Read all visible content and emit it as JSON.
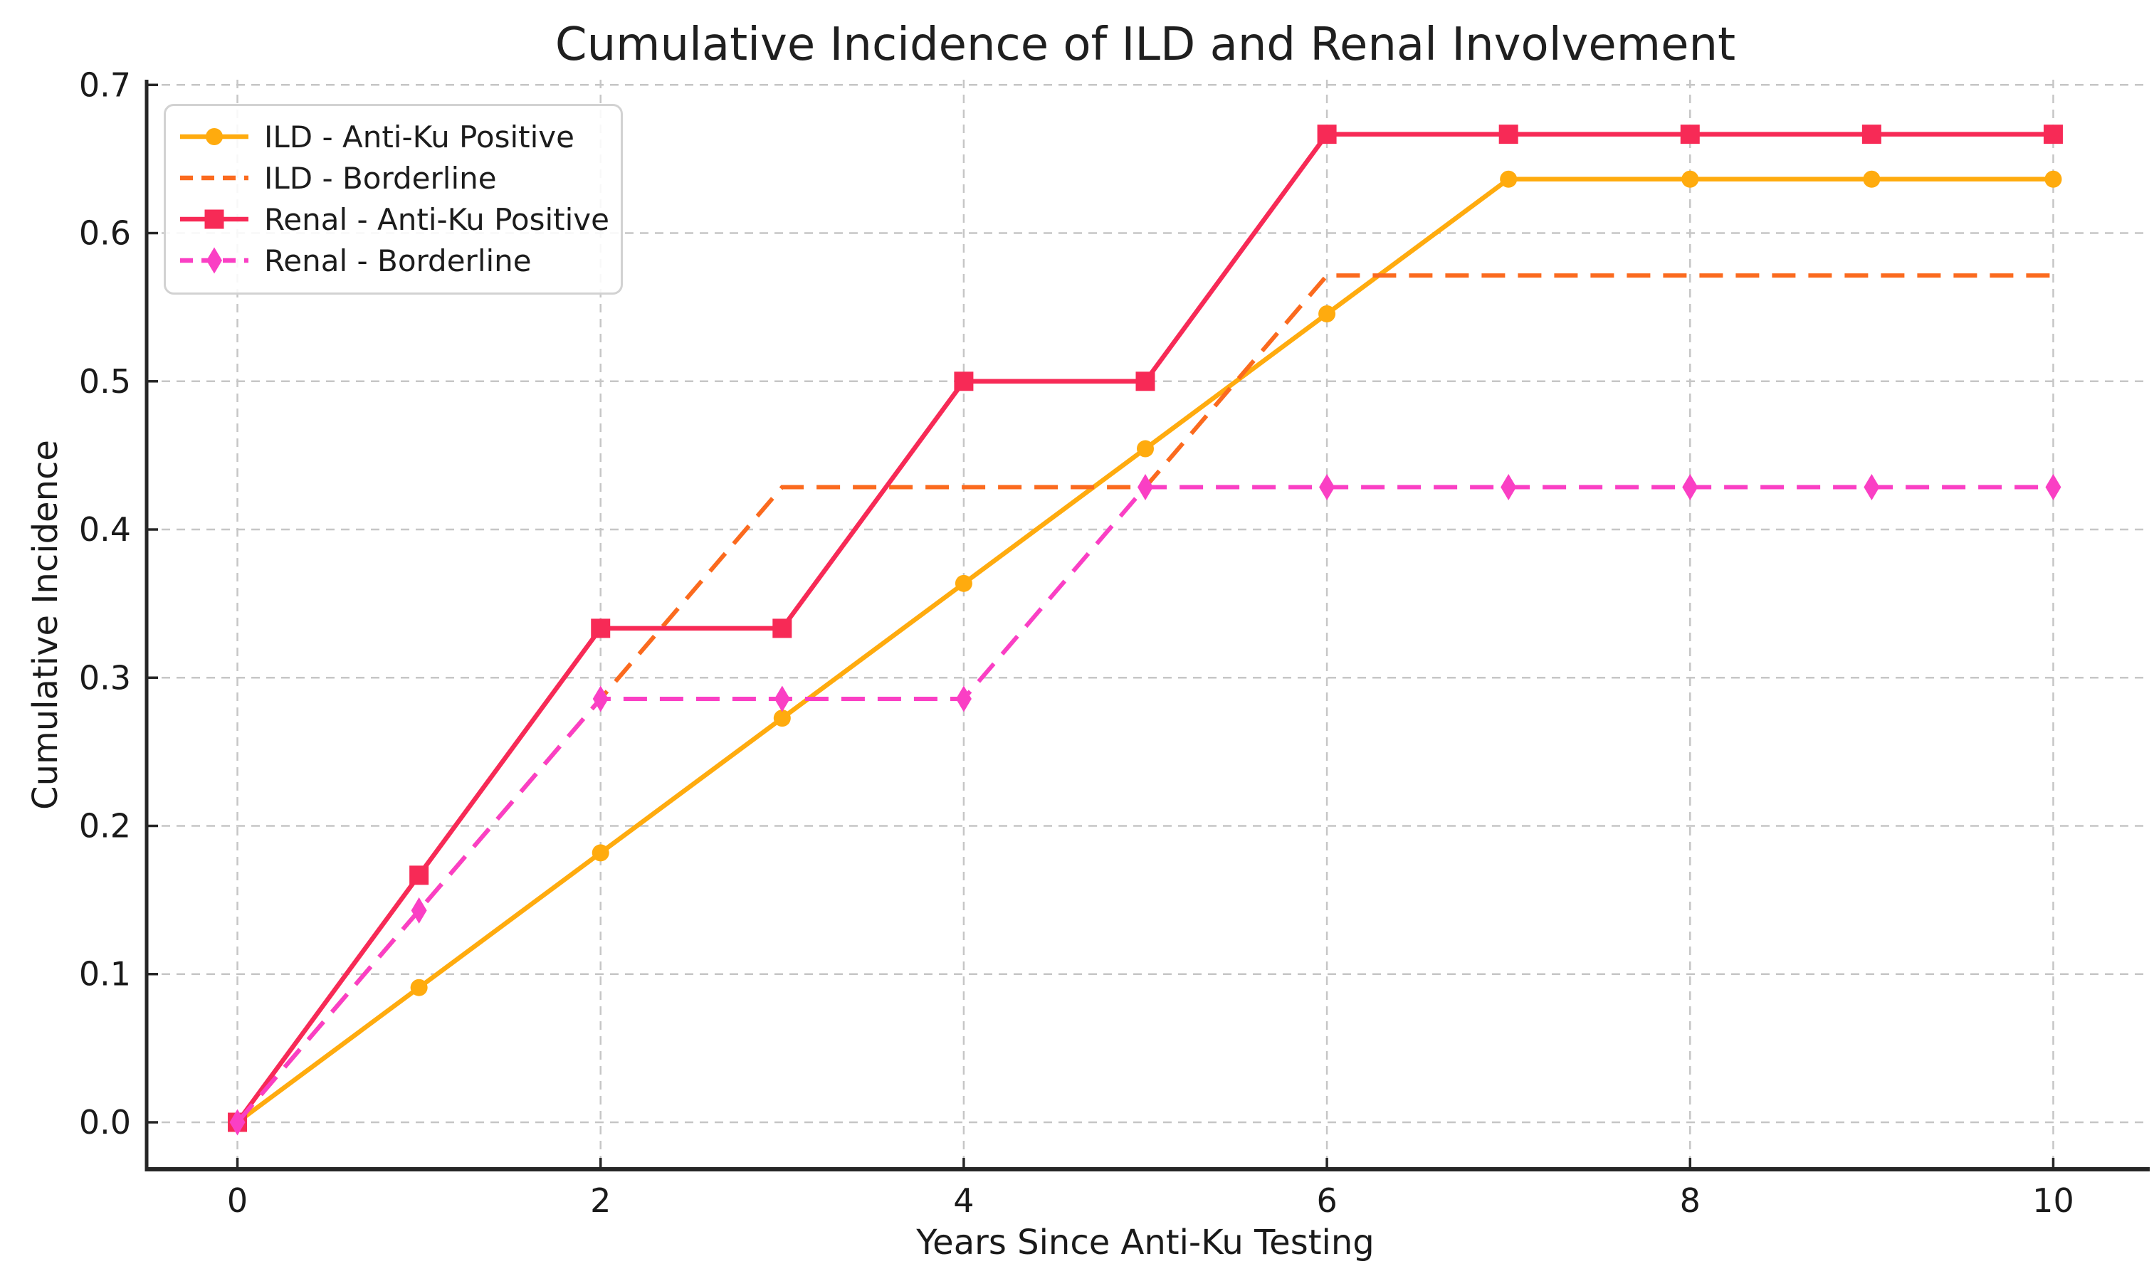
{
  "page": {
    "background": "#ffffff"
  },
  "chart_data": {
    "type": "line",
    "title": "Cumulative Incidence of ILD and Renal Involvement",
    "xlabel": "Years Since Anti-Ku Testing",
    "ylabel": "Cumulative Incidence",
    "x": [
      0,
      1,
      2,
      3,
      4,
      5,
      6,
      7,
      8,
      9,
      10
    ],
    "series": [
      {
        "name": "ILD - Anti-Ku Positive",
        "color": "#FFAB0E",
        "line_style": "solid",
        "marker": "circle",
        "values": [
          0.0,
          0.0909,
          0.1818,
          0.2727,
          0.3636,
          0.4545,
          0.5455,
          0.6364,
          0.6364,
          0.6364,
          0.6364
        ]
      },
      {
        "name": "ILD - Borderline",
        "color": "#FB6A1E",
        "line_style": "dashed",
        "marker": "none",
        "values": [
          0.0,
          0.1429,
          0.2857,
          0.4286,
          0.4286,
          0.4286,
          0.5714,
          0.5714,
          0.5714,
          0.5714,
          0.5714
        ]
      },
      {
        "name": "Renal - Anti-Ku Positive",
        "color": "#F72A56",
        "line_style": "solid",
        "marker": "square",
        "values": [
          0.0,
          0.1667,
          0.3333,
          0.3333,
          0.5,
          0.5,
          0.6667,
          0.6667,
          0.6667,
          0.6667,
          0.6667
        ]
      },
      {
        "name": "Renal - Borderline",
        "color": "#FA3FC4",
        "line_style": "dashed",
        "marker": "thin-diamond",
        "values": [
          0.0,
          0.1429,
          0.2857,
          0.2857,
          0.2857,
          0.4286,
          0.4286,
          0.4286,
          0.4286,
          0.4286,
          0.4286
        ]
      }
    ],
    "xticks": [
      "0",
      "2",
      "4",
      "6",
      "8",
      "10"
    ],
    "yticks": [
      "0.0",
      "0.1",
      "0.2",
      "0.3",
      "0.4",
      "0.5",
      "0.6",
      "0.7"
    ],
    "xlim": [
      -0.5,
      10.5
    ],
    "ylim": [
      -0.0317,
      0.7035
    ],
    "grid": true,
    "grid_color": "#c6c6c6",
    "axis_color": "#262626",
    "text_color": "#1a1a1a",
    "legend_position": "upper-left"
  }
}
